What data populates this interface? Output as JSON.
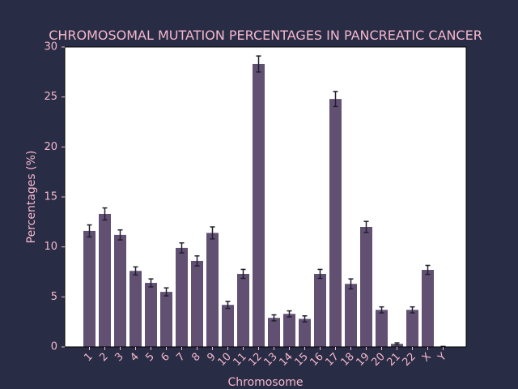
{
  "colors": {
    "background": "#292c45",
    "plot_background": "#ffffff",
    "bar_fill": "#625073",
    "error_bar": "#1f1f2e",
    "text": "#f4b8cc"
  },
  "chart_data": {
    "type": "bar",
    "title": "CHROMOSOMAL MUTATION PERCENTAGES IN PANCREATIC CANCER",
    "xlabel": "Chromosome",
    "ylabel": "Percentages (%)",
    "ylim": [
      0,
      30
    ],
    "yticks": [
      0,
      5,
      10,
      15,
      20,
      25,
      30
    ],
    "grid": false,
    "categories": [
      "1",
      "2",
      "3",
      "4",
      "5",
      "6",
      "7",
      "8",
      "9",
      "10",
      "11",
      "12",
      "13",
      "14",
      "15",
      "16",
      "17",
      "18",
      "19",
      "20",
      "21",
      "22",
      "X",
      "Y"
    ],
    "values": [
      11.6,
      13.3,
      11.2,
      7.6,
      6.4,
      5.5,
      9.9,
      8.6,
      11.4,
      4.2,
      7.3,
      28.3,
      2.9,
      3.3,
      2.8,
      7.3,
      24.8,
      6.3,
      12.0,
      3.7,
      0.3,
      3.7,
      7.7,
      0.0
    ],
    "errors": [
      0.6,
      0.6,
      0.5,
      0.4,
      0.4,
      0.4,
      0.5,
      0.5,
      0.6,
      0.35,
      0.45,
      0.8,
      0.3,
      0.3,
      0.3,
      0.45,
      0.75,
      0.5,
      0.55,
      0.3,
      0.1,
      0.3,
      0.45,
      0.05
    ]
  }
}
